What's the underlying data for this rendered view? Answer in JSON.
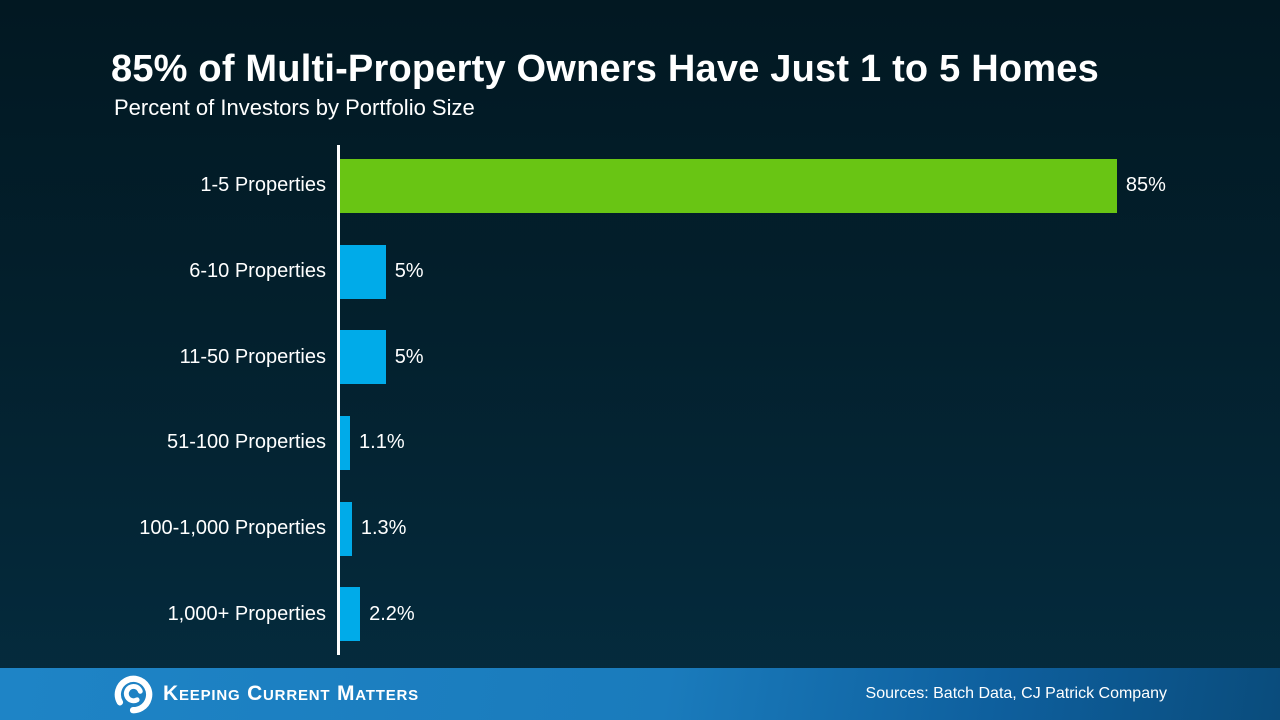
{
  "header": {
    "title": "85% of Multi-Property Owners Have Just 1 to 5 Homes",
    "subtitle": "Percent of Investors by Portfolio Size"
  },
  "chart_data": {
    "type": "bar",
    "orientation": "horizontal",
    "title": "85% of Multi-Property Owners Have Just 1 to 5 Homes",
    "subtitle": "Percent of Investors by Portfolio Size",
    "categories": [
      "1-5 Properties",
      "6-10 Properties",
      "11-50 Properties",
      "51-100 Properties",
      "100-1,000 Properties",
      "1,000+ Properties"
    ],
    "values": [
      85,
      5,
      5,
      1.1,
      1.3,
      2.2
    ],
    "value_labels": [
      "85%",
      "5%",
      "5%",
      "1.1%",
      "1.3%",
      "2.2%"
    ],
    "bar_colors": [
      "#69c514",
      "#00abe9",
      "#00abe9",
      "#00abe9",
      "#00abe9",
      "#00abe9"
    ],
    "xlim": [
      0,
      100
    ],
    "grid": false,
    "legend": false,
    "value_label_position": "right-of-bar",
    "accent_green": "#69c514",
    "accent_blue": "#00abe9",
    "axis_color": "#fdfdfd"
  },
  "footer": {
    "brand": "Keeping Current Matters",
    "logo_icon": "kcm-swirl-icon",
    "sources": "Sources: Batch Data, CJ Patrick Company",
    "background_left": "#1e84c6",
    "background_right": "#0a4c7c"
  }
}
